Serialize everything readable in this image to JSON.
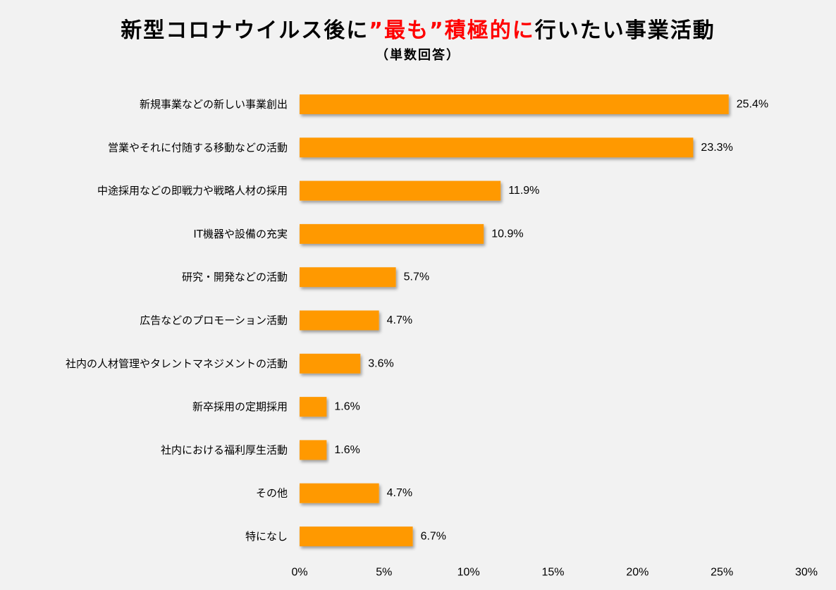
{
  "title": {
    "part1": "新型コロナウイルス後に",
    "highlight": "”最も”積極的に",
    "part2": "行いたい事業活動"
  },
  "subtitle": "（単数回答）",
  "colors": {
    "bar": "#ff9900",
    "highlight_text": "#ff0000",
    "background": "#f2f2f2"
  },
  "chart_data": {
    "type": "bar",
    "orientation": "horizontal",
    "title": "新型コロナウイルス後に”最も”積極的に行いたい事業活動",
    "subtitle": "（単数回答）",
    "categories": [
      "新規事業などの新しい事業創出",
      "営業やそれに付随する移動などの活動",
      "中途採用などの即戦力や戦略人材の採用",
      "IT機器や設備の充実",
      "研究・開発などの活動",
      "広告などのプロモーション活動",
      "社内の人材管理やタレントマネジメントの活動",
      "新卒採用の定期採用",
      "社内における福利厚生活動",
      "その他",
      "特になし"
    ],
    "values": [
      25.4,
      23.3,
      11.9,
      10.9,
      5.7,
      4.7,
      3.6,
      1.6,
      1.6,
      4.7,
      6.7
    ],
    "value_labels": [
      "25.4%",
      "23.3%",
      "11.9%",
      "10.9%",
      "5.7%",
      "4.7%",
      "3.6%",
      "1.6%",
      "1.6%",
      "4.7%",
      "6.7%"
    ],
    "xlim": [
      0,
      30
    ],
    "xticks": [
      0,
      5,
      10,
      15,
      20,
      25,
      30
    ],
    "xtick_labels": [
      "0%",
      "5%",
      "10%",
      "15%",
      "20%",
      "25%",
      "30%"
    ],
    "grid": false,
    "legend": "none"
  }
}
